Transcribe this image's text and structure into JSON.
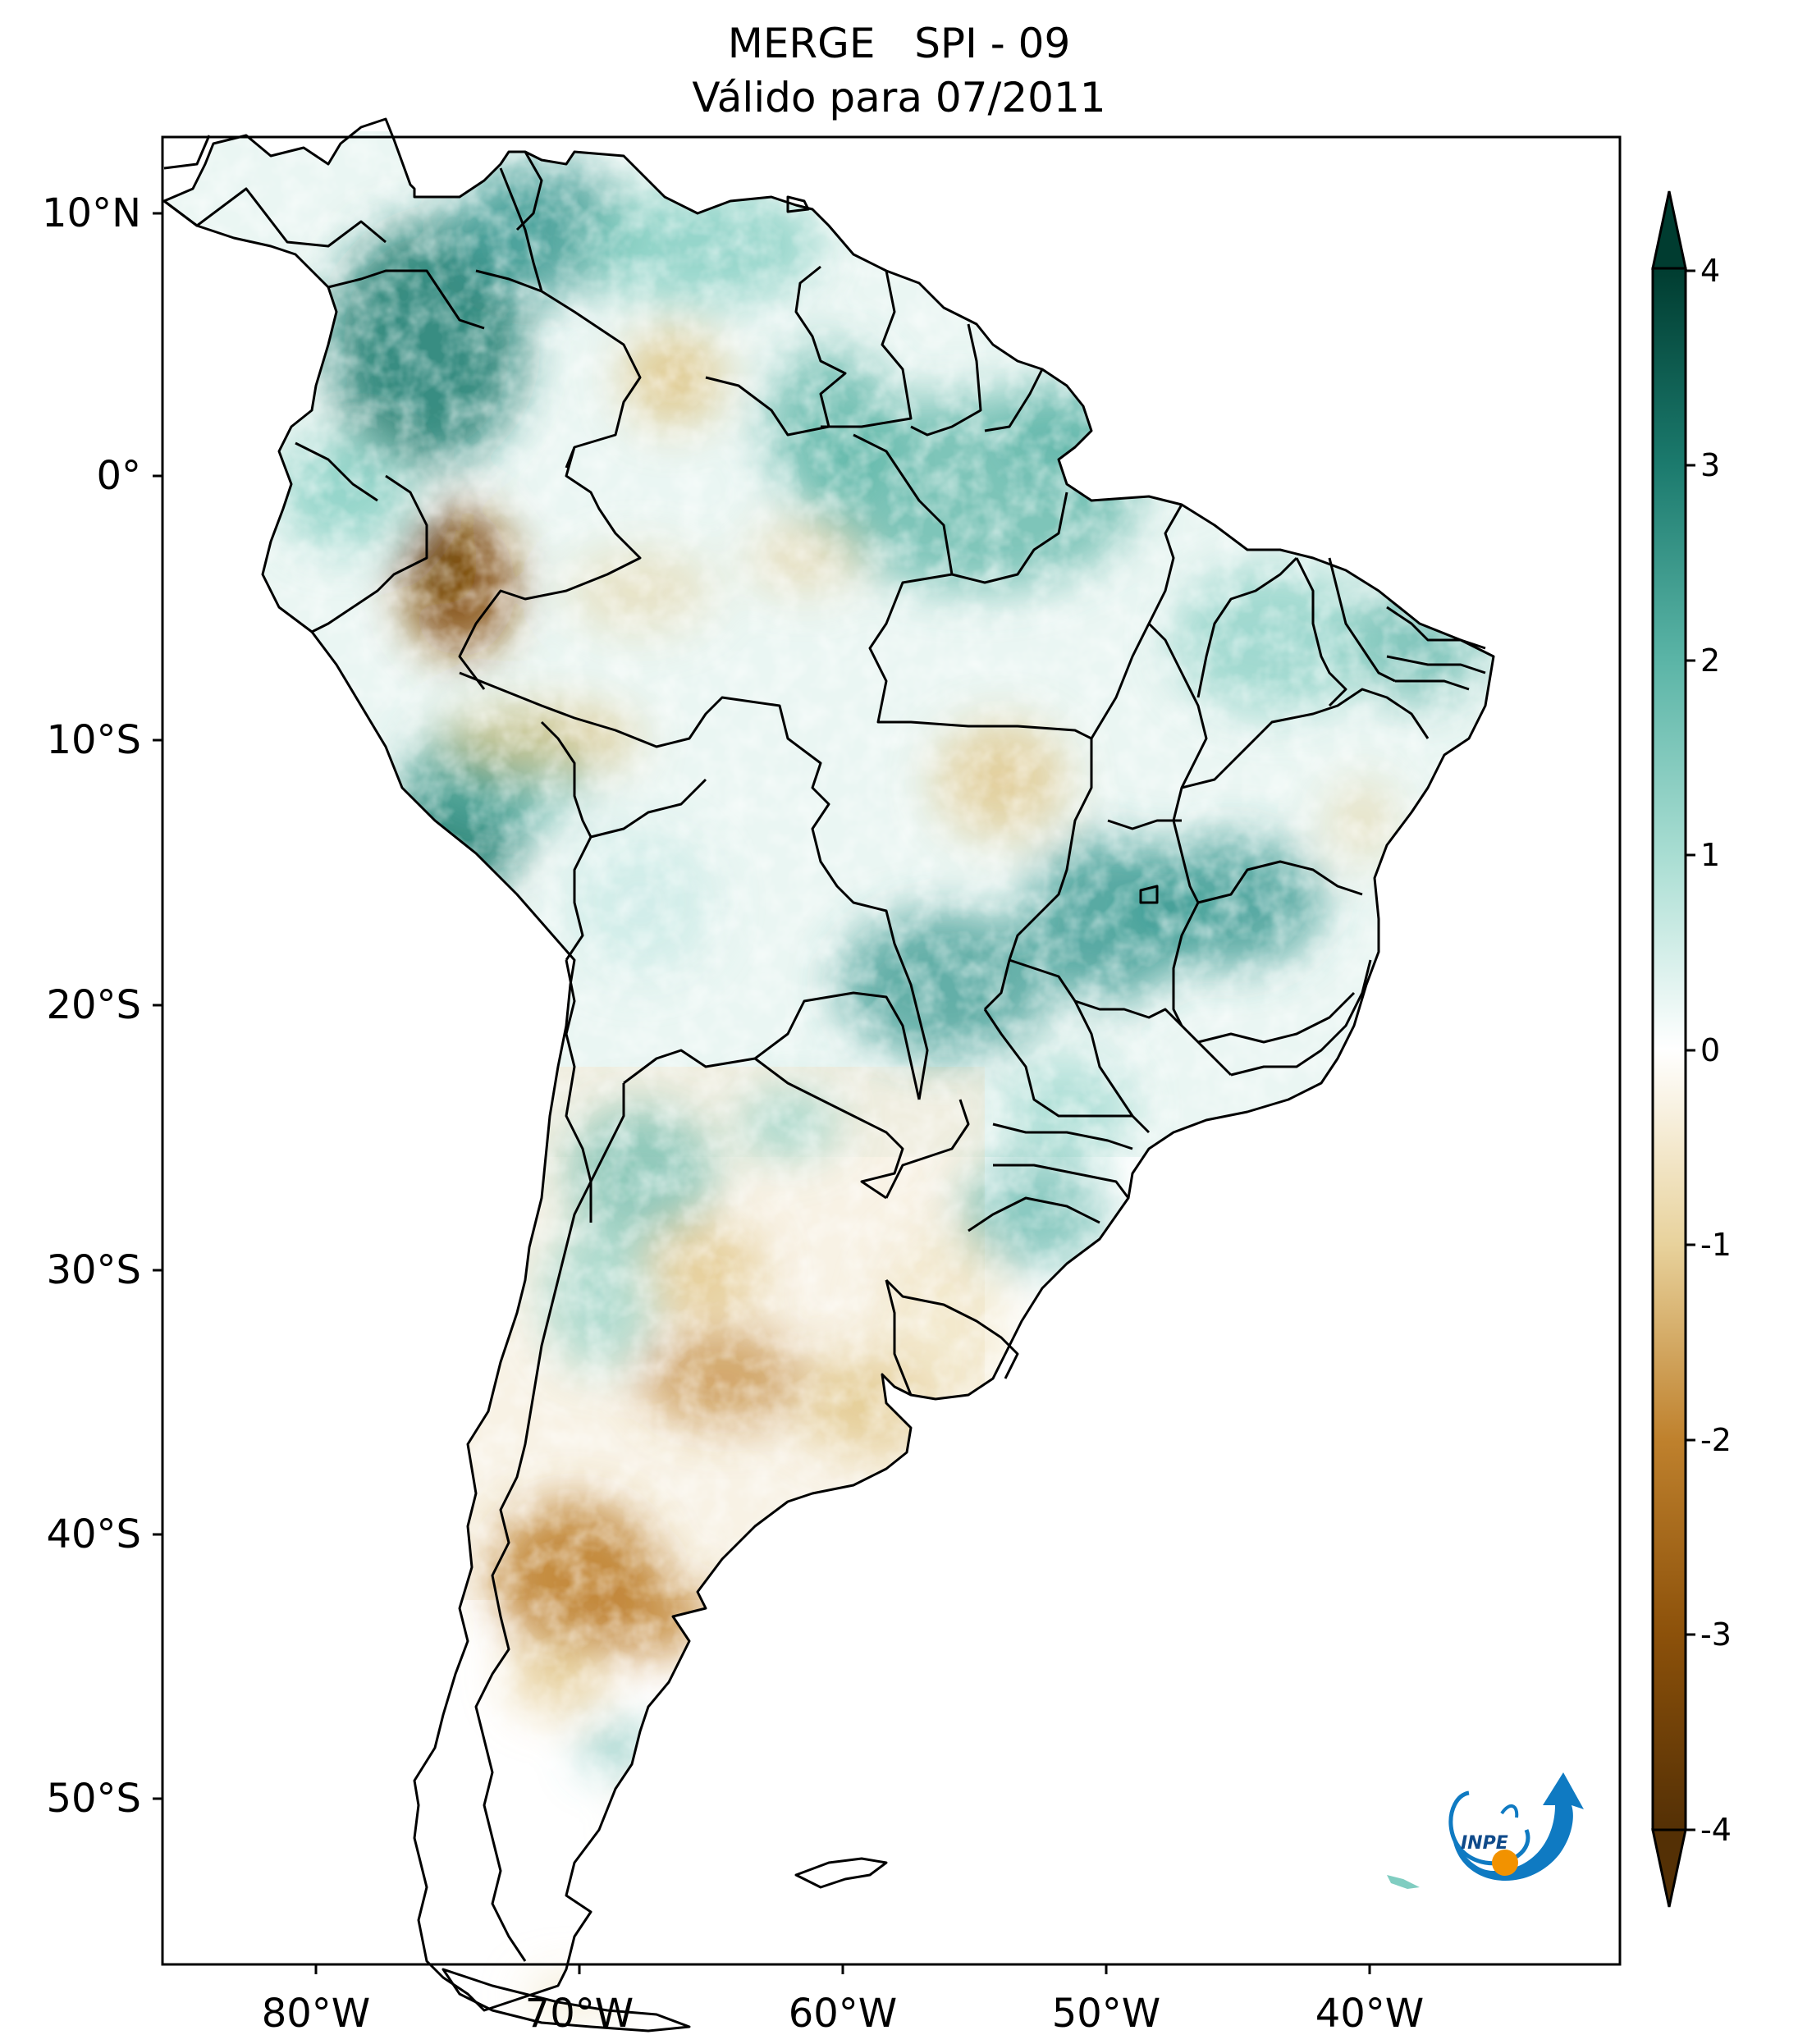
{
  "title": {
    "line1": "MERGE   SPI - 09",
    "line2": "Válido para 07/2011"
  },
  "axes": {
    "lon_ticks": [
      "80°W",
      "70°W",
      "60°W",
      "50°W",
      "40°W"
    ],
    "lat_ticks": [
      "10°N",
      "0°",
      "10°S",
      "20°S",
      "30°S",
      "40°S",
      "50°S"
    ]
  },
  "colorbar": {
    "ticks": [
      "4",
      "3",
      "2",
      "1",
      "0",
      "-1",
      "-2",
      "-3",
      "-4"
    ],
    "range": [
      -4,
      4
    ],
    "colors": {
      "neg4": "#543005",
      "neg3": "#8c510a",
      "neg2": "#bf812d",
      "neg1": "#e8d29c",
      "zero": "#ffffff",
      "pos1": "#a8ddd2",
      "pos2": "#5ab4a6",
      "pos3": "#1b7a6d",
      "pos4": "#003c30"
    }
  },
  "logo": {
    "text": "INPE"
  },
  "map_data": {
    "region": "South America",
    "variable": "SPI-9",
    "lon_range": [
      -85,
      -30
    ],
    "lat_range": [
      -56,
      13
    ],
    "anomalies": [
      {
        "lat": 7,
        "lon": -74,
        "spi": 2.6
      },
      {
        "lat": 9,
        "lon": -68,
        "spi": 2.0
      },
      {
        "lat": -1,
        "lon": -55,
        "spi": 2.1
      },
      {
        "lat": -13,
        "lon": -74,
        "spi": 3.0
      },
      {
        "lat": -16,
        "lon": -44,
        "spi": 2.5
      },
      {
        "lat": -4,
        "lon": -75,
        "spi": -2.4
      },
      {
        "lat": -42,
        "lon": -68,
        "spi": -1.9
      },
      {
        "lat": -34,
        "lon": -64,
        "spi": -1.4
      },
      {
        "lat": -12,
        "lon": -52,
        "spi": -1.0
      }
    ]
  }
}
